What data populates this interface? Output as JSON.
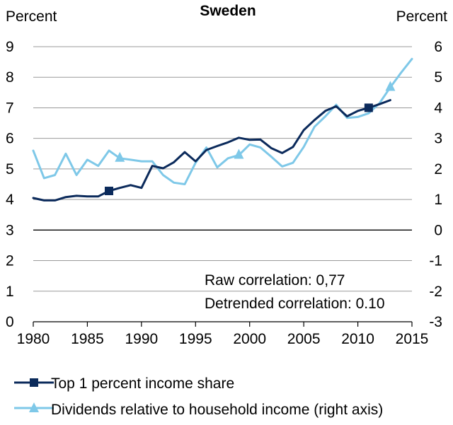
{
  "chart_data": {
    "type": "line",
    "title": "Sweden",
    "left_axis_label": "Percent",
    "right_axis_label": "Percent",
    "x_ticks": [
      "1980",
      "1985",
      "1990",
      "1995",
      "2000",
      "2005",
      "2010",
      "2015"
    ],
    "left_ticks": [
      "0",
      "1",
      "2",
      "3",
      "4",
      "5",
      "6",
      "7",
      "8",
      "9"
    ],
    "right_ticks": [
      "-3",
      "-2",
      "-1",
      "0",
      "1",
      "2",
      "3",
      "4",
      "5",
      "6"
    ],
    "xlim": [
      1980,
      2015
    ],
    "ylim_left": [
      0,
      9
    ],
    "ylim_right": [
      -3,
      6
    ],
    "grid": true,
    "annotations": [
      "Raw correlation: 0,77",
      "Detrended correlation: 0.10"
    ],
    "legend_position": "bottom",
    "series": [
      {
        "name": "Top 1 percent income share",
        "axis": "left",
        "color": "#0b2a5b",
        "marker": "square",
        "marker_years": [
          1987,
          2011
        ],
        "x": [
          1980,
          1981,
          1982,
          1983,
          1984,
          1985,
          1986,
          1987,
          1988,
          1989,
          1990,
          1991,
          1992,
          1993,
          1994,
          1995,
          1996,
          1997,
          1998,
          1999,
          2000,
          2001,
          2002,
          2003,
          2004,
          2005,
          2006,
          2007,
          2008,
          2009,
          2010,
          2011,
          2012,
          2013
        ],
        "values": [
          4.05,
          3.97,
          3.97,
          4.08,
          4.12,
          4.1,
          4.1,
          4.28,
          4.38,
          4.47,
          4.38,
          5.1,
          5.02,
          5.22,
          5.55,
          5.25,
          5.62,
          5.75,
          5.87,
          6.02,
          5.95,
          5.96,
          5.68,
          5.52,
          5.72,
          6.27,
          6.6,
          6.9,
          7.05,
          6.72,
          6.9,
          7.0,
          7.12,
          7.25
        ]
      },
      {
        "name": "Dividends relative to household income (right axis)",
        "axis": "right",
        "color": "#7ec8e8",
        "marker": "triangle",
        "marker_years": [
          1988,
          1999,
          2013
        ],
        "x": [
          1980,
          1981,
          1982,
          1983,
          1984,
          1985,
          1986,
          1987,
          1988,
          1989,
          1990,
          1991,
          1992,
          1993,
          1994,
          1995,
          1996,
          1997,
          1998,
          1999,
          2000,
          2001,
          2002,
          2003,
          2004,
          2005,
          2006,
          2007,
          2008,
          2009,
          2010,
          2011,
          2012,
          2013,
          2014,
          2015
        ],
        "values": [
          2.6,
          1.7,
          1.8,
          2.5,
          1.8,
          2.3,
          2.1,
          2.6,
          2.35,
          2.3,
          2.25,
          2.25,
          1.8,
          1.55,
          1.5,
          2.2,
          2.7,
          2.05,
          2.35,
          2.45,
          2.8,
          2.7,
          2.4,
          2.08,
          2.2,
          2.72,
          3.38,
          3.72,
          4.1,
          3.67,
          3.7,
          3.82,
          4.15,
          4.67,
          5.15,
          5.6
        ]
      }
    ]
  }
}
